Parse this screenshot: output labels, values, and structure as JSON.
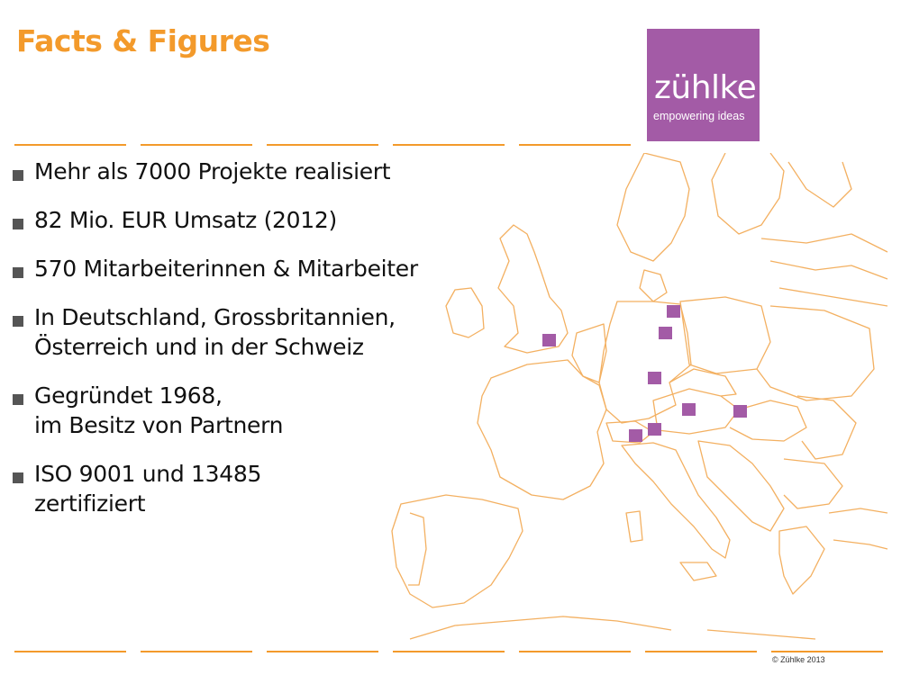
{
  "slide": {
    "title": "Facts & Figures",
    "logo": {
      "word": "zühlke",
      "tagline": "empowering ideas"
    },
    "bullets": [
      {
        "lines": [
          "Mehr als 7000 Projekte realisiert"
        ]
      },
      {
        "lines": [
          "82 Mio. EUR Umsatz (2012)"
        ]
      },
      {
        "lines": [
          "570 Mitarbeiterinnen & Mitarbeiter"
        ]
      },
      {
        "lines": [
          "In Deutschland, Grossbritannien,",
          "Österreich und in der Schweiz"
        ]
      },
      {
        "lines": [
          "Gegründet 1968,",
          "im Besitz von Partnern"
        ]
      },
      {
        "lines": [
          "ISO 9001 und 13485",
          "zertifiziert"
        ]
      }
    ],
    "copyright": "© Zühlke 2013"
  },
  "colors": {
    "accent": "#f39a2b",
    "brand": "#a35ba6",
    "map_border": "#f3b061"
  }
}
